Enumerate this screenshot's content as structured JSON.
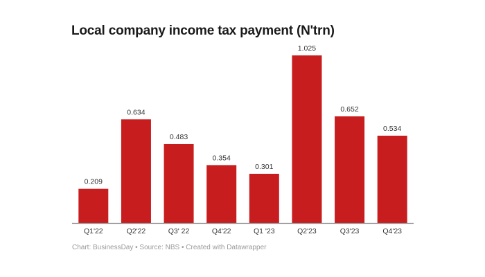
{
  "chart_data": {
    "type": "bar",
    "title": "Local company income tax payment (N'trn)",
    "categories": [
      "Q1'22",
      "Q2'22",
      "Q3' 22",
      "Q4'22",
      "Q1 '23",
      "Q2'23",
      "Q3'23",
      "Q4'23"
    ],
    "values": [
      0.209,
      0.634,
      0.483,
      0.354,
      0.301,
      1.025,
      0.652,
      0.534
    ],
    "value_labels": [
      "0.209",
      "0.634",
      "0.483",
      "0.354",
      "0.301",
      "1.025",
      "0.652",
      "0.534"
    ],
    "xlabel": "",
    "ylabel": "",
    "ylim": [
      0,
      1.025
    ],
    "grid": false,
    "bar_color": "#c81d1f",
    "footer": "Chart: BusinessDay • Source: NBS • Created with Datawrapper"
  }
}
